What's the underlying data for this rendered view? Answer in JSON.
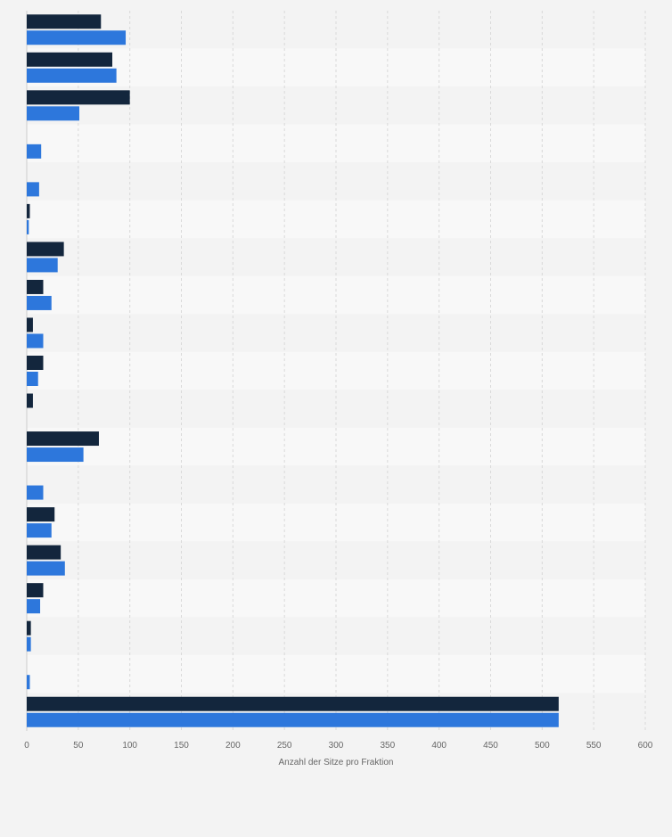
{
  "chart_data": {
    "type": "bar",
    "orientation": "horizontal",
    "xlabel": "Anzahl der Sitze pro Fraktion",
    "xlim": [
      0,
      600
    ],
    "xticks": [
      0,
      50,
      100,
      150,
      200,
      250,
      300,
      350,
      400,
      450,
      500,
      550,
      600
    ],
    "grid": true,
    "category_labels_visible": false,
    "categories_count": 19,
    "series": [
      {
        "color": "#13263d",
        "values": [
          72,
          83,
          100,
          null,
          null,
          3,
          36,
          16,
          6,
          16,
          6,
          70,
          null,
          27,
          33,
          16,
          4,
          null,
          516
        ]
      },
      {
        "color": "#2d77dc",
        "values": [
          96,
          87,
          51,
          14,
          12,
          2,
          30,
          24,
          16,
          11,
          null,
          55,
          16,
          24,
          37,
          13,
          4,
          3,
          516
        ]
      }
    ],
    "colors": {
      "band_odd": "#f3f3f3",
      "band_even": "#f8f8f8",
      "grid": "#d9d9d9",
      "axis": "#cccccc"
    }
  }
}
